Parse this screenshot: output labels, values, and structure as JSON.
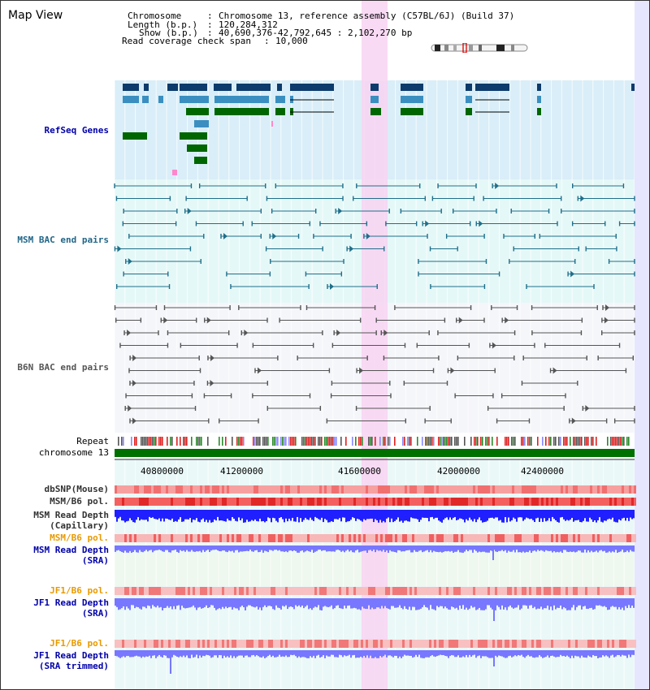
{
  "title": "Map View",
  "info": {
    "chromosome_key": "Chromosome",
    "chromosome_value": "Chromosome 13, reference assembly (C57BL/6J) (Build 37)",
    "length_key": "Length (b.p.)",
    "length_value": "120,284,312",
    "show_key": "Show (b.p.)",
    "show_value": "40,690,376-42,792,645 : 2,102,270 bp",
    "span_key": "Read coverage check span",
    "span_value": "10,000"
  },
  "tracks": {
    "refseq": "RefSeq Genes",
    "msm_bac": "MSM BAC end pairs",
    "b6n_bac": "B6N BAC end pairs",
    "repeat": "Repeat",
    "chromosome": "chromosome 13",
    "dbsnp": "dbSNP(Mouse)",
    "msm_b6_pol_1": "MSM/B6 pol.",
    "msm_depth_cap_1": "MSM Read Depth",
    "msm_depth_cap_2": "(Capillary)",
    "msm_b6_pol_2": "MSM/B6 pol.",
    "msm_depth_sra_1": "MSM Read Depth",
    "msm_depth_sra_2": "(SRA)",
    "jf1_b6_pol_1": "JF1/B6 pol.",
    "jf1_depth_sra_1": "JF1 Read Depth",
    "jf1_depth_sra_2": "(SRA)",
    "jf1_b6_pol_2": "JF1/B6 pol.",
    "jf1_depth_trim_1": "JF1 Read Depth",
    "jf1_depth_trim_2": "(SRA trimmed)"
  },
  "axis": {
    "ticks": [
      "40800000",
      "41200000",
      "41600000",
      "42000000",
      "42400000"
    ]
  },
  "colors": {
    "refseq_dark": "#0d3b6b",
    "refseq_mid": "#3a8fc0",
    "refseq_green": "#006600",
    "msm_line": "#1f6f8a",
    "b6n_line": "#555555",
    "highlight": "#f8d3f2",
    "depth_blue": "#1f1fff",
    "depth_light": "#7777ff",
    "label_blue": "#0000aa",
    "label_orange": "#e89a00",
    "label_teal": "#226688"
  }
}
